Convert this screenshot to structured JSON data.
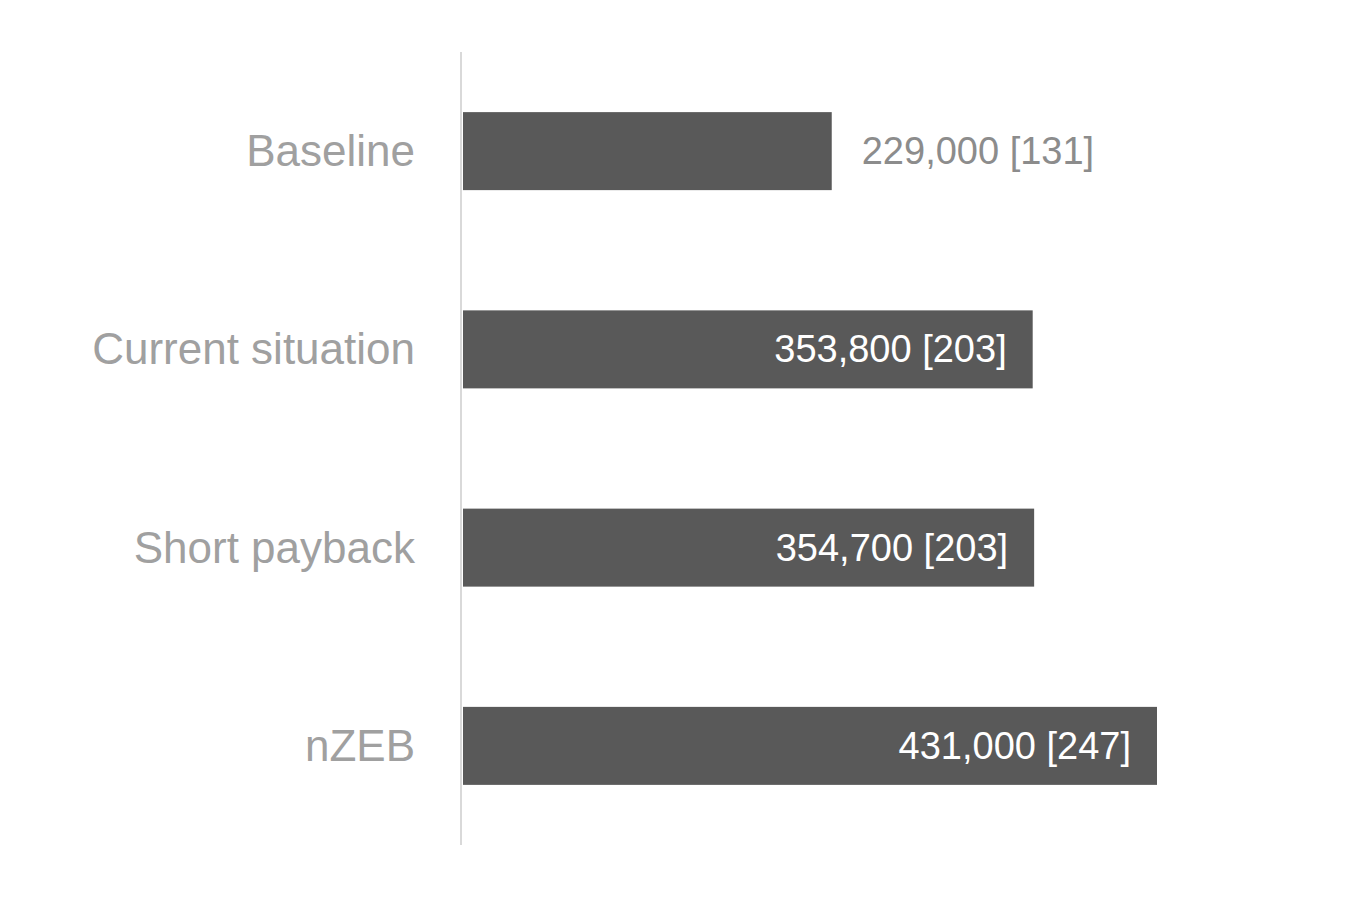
{
  "chart_data": {
    "type": "bar",
    "orientation": "horizontal",
    "categories": [
      "Baseline",
      "Current situation",
      "Short payback",
      "nZEB"
    ],
    "values": [
      229000,
      353800,
      354700,
      431000
    ],
    "value_labels": [
      "229,000 [131]",
      "353,800 [203]",
      "354,700 [203]",
      "431,000 [247]"
    ],
    "color": "#595959",
    "xlim": [
      0,
      431000
    ],
    "grid": false,
    "data_labels": true,
    "tick_labels": "y"
  }
}
